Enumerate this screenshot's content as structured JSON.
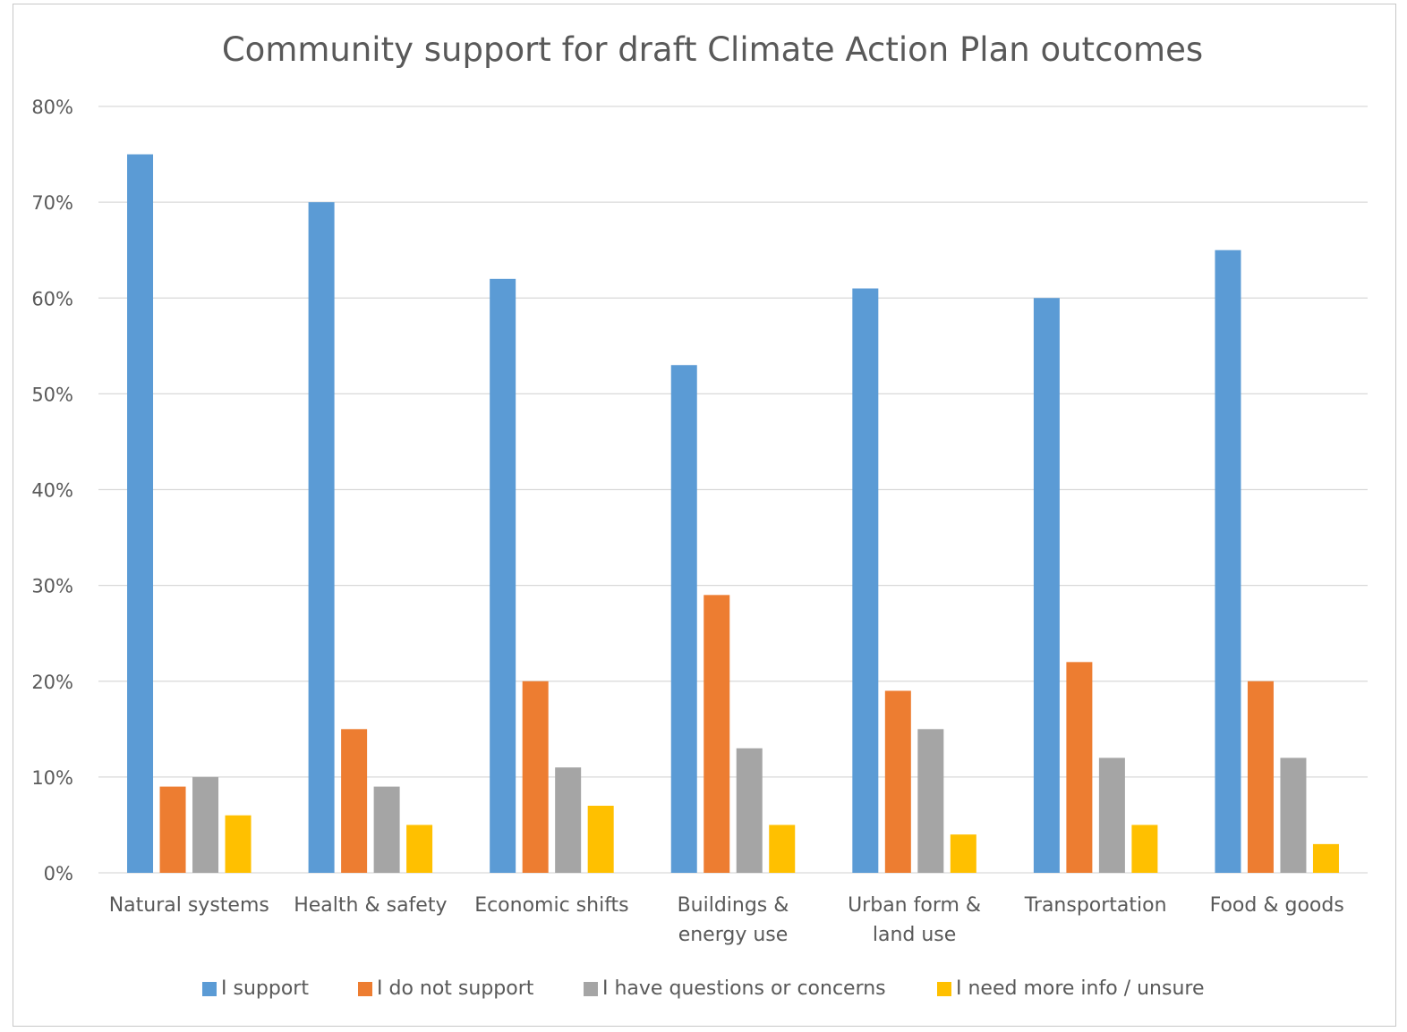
{
  "chart_data": {
    "type": "bar",
    "title": "Community support for draft Climate Action Plan outcomes",
    "xlabel": "",
    "ylabel": "",
    "ylim": [
      0,
      80
    ],
    "yticks": [
      "0%",
      "10%",
      "20%",
      "30%",
      "40%",
      "50%",
      "60%",
      "70%",
      "80%"
    ],
    "y_tick_values": [
      0,
      10,
      20,
      30,
      40,
      50,
      60,
      70,
      80
    ],
    "grid": true,
    "legend_position": "bottom",
    "categories": [
      [
        "Natural systems"
      ],
      [
        "Health & safety"
      ],
      [
        "Economic shifts"
      ],
      [
        "Buildings &",
        "energy use"
      ],
      [
        "Urban form &",
        "land use"
      ],
      [
        "Transportation"
      ],
      [
        "Food & goods"
      ]
    ],
    "series": [
      {
        "name": "I support",
        "color": "#5b9bd5",
        "values": [
          75,
          70,
          62,
          53,
          61,
          60,
          65
        ]
      },
      {
        "name": "I do not support",
        "color": "#ed7d31",
        "values": [
          9,
          15,
          20,
          29,
          19,
          22,
          20
        ]
      },
      {
        "name": "I have questions or concerns",
        "color": "#a5a5a5",
        "values": [
          10,
          9,
          11,
          13,
          15,
          12,
          12
        ]
      },
      {
        "name": "I need more info / unsure",
        "color": "#ffc000",
        "values": [
          6,
          5,
          7,
          5,
          4,
          5,
          3
        ]
      }
    ]
  }
}
